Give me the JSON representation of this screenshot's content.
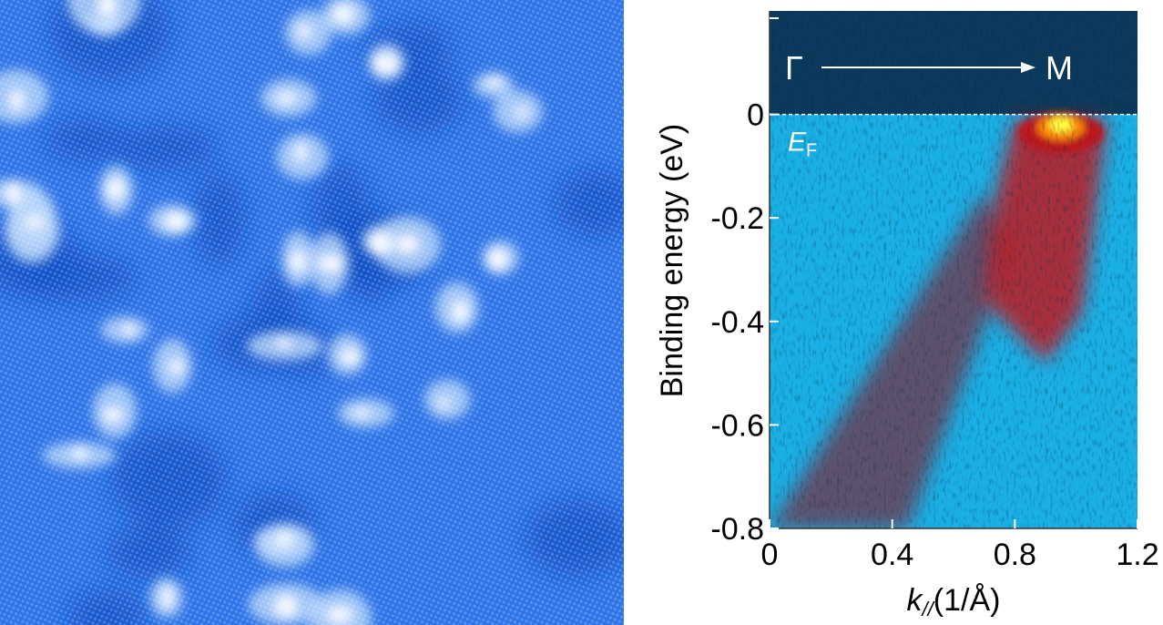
{
  "stm_image": {
    "colormap": [
      "#0d4fc4",
      "#1e6ae6",
      "#4d90ef",
      "#b9d7fb",
      "#ffffff"
    ]
  },
  "chart_data": {
    "type": "heatmap",
    "title": "",
    "xlabel": "k",
    "xlabel_sub": "//",
    "xlabel_unit": "(1/Å)",
    "ylabel": "Binding energy (eV)",
    "xlim": [
      0,
      1.2
    ],
    "ylim": [
      -0.8,
      0.2
    ],
    "x_ticks": [
      0,
      0.4,
      0.8,
      1.2
    ],
    "x_tick_labels": [
      "0",
      "0.4",
      "0.8",
      "1.2"
    ],
    "y_ticks": [
      0,
      -0.2,
      -0.4,
      -0.6,
      -0.8
    ],
    "y_tick_labels": [
      "0",
      "-0.2",
      "-0.4",
      "-0.6",
      "-0.8"
    ],
    "fermi_level": 0,
    "fermi_label": "E",
    "fermi_label_sub": "F",
    "direction_start": "Γ",
    "direction_end": "M",
    "colors": {
      "above_fermi": "#0b3a5c",
      "background": "#1ab0e6",
      "intensity_low": "#7a2a3a",
      "intensity_mid": "#c0141c",
      "intensity_high": "#ff8a00",
      "intensity_peak": "#ffff40"
    },
    "intense_band": {
      "k_center": 0.95,
      "energy_top": 0,
      "energy_bottom": -0.48,
      "k_range_at_top": [
        0.8,
        1.1
      ]
    },
    "weak_band": {
      "k_range": [
        0.0,
        0.7
      ],
      "energy_range": [
        -0.8,
        -0.15
      ]
    }
  }
}
